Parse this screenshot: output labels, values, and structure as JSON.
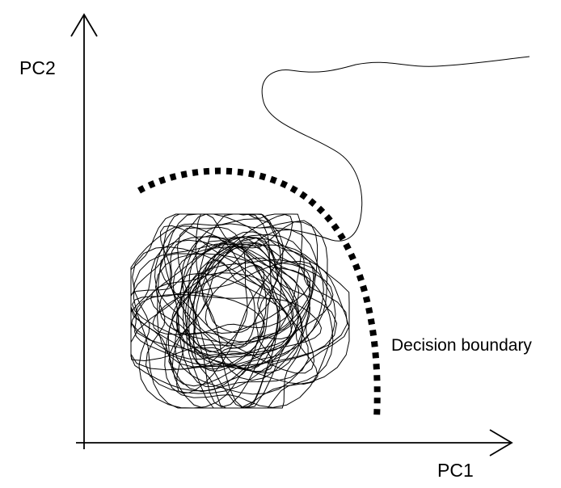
{
  "axes": {
    "y_label": "PC2",
    "x_label": "PC1"
  },
  "annotations": {
    "boundary_label": "Decision boundary"
  },
  "colors": {
    "background": "#ffffff",
    "ink": "#000000"
  }
}
